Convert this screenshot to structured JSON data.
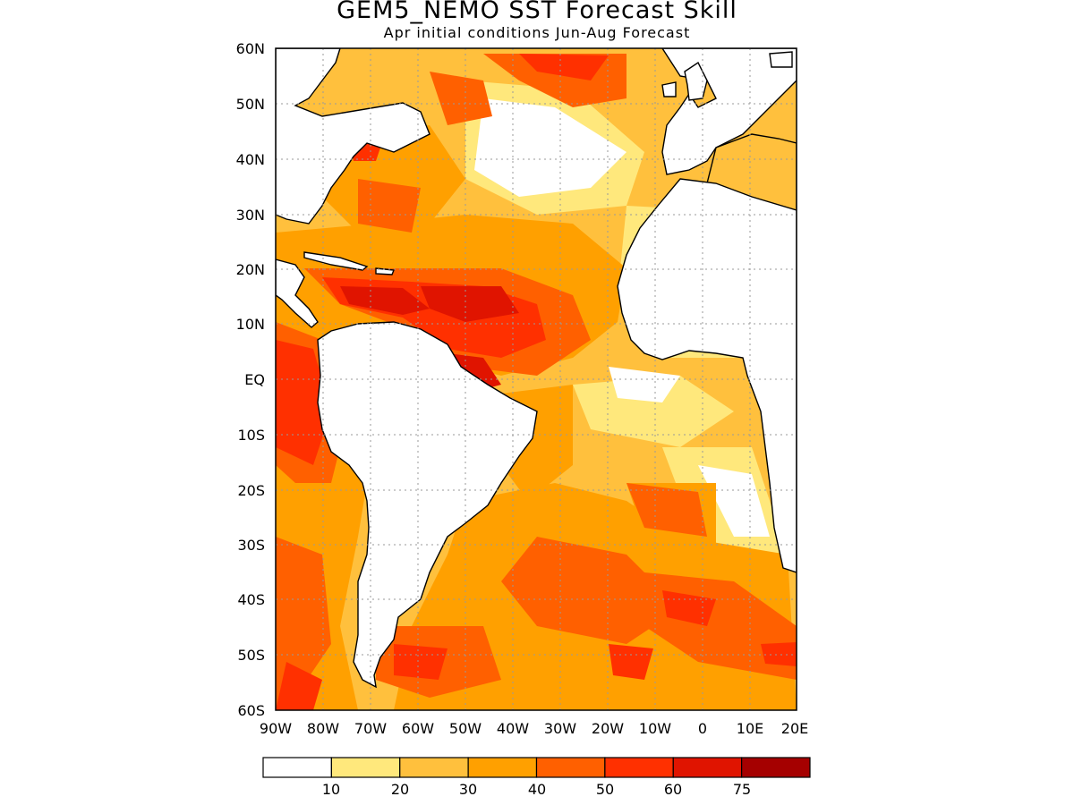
{
  "title": "GEM5_NEMO SST Forecast Skill",
  "subtitle": "Apr initial conditions  Jun-Aug Forecast",
  "map": {
    "lon_range": [
      -90,
      20
    ],
    "lat_range": [
      -60,
      60
    ],
    "lat_labels": [
      "60N",
      "50N",
      "40N",
      "30N",
      "20N",
      "10N",
      "EQ",
      "10S",
      "20S",
      "30S",
      "40S",
      "50S",
      "60S"
    ],
    "lon_labels": [
      "90W",
      "80W",
      "70W",
      "60W",
      "50W",
      "40W",
      "30W",
      "20W",
      "10W",
      "0",
      "10E",
      "20E"
    ],
    "grid": true
  },
  "colorbar": {
    "colors": [
      "#ffffff",
      "#ffe87c",
      "#ffc03d",
      "#ffa000",
      "#ff6000",
      "#ff3000",
      "#e01400",
      "#a50000"
    ],
    "labels": [
      "10",
      "20",
      "30",
      "40",
      "50",
      "60",
      "75"
    ]
  }
}
